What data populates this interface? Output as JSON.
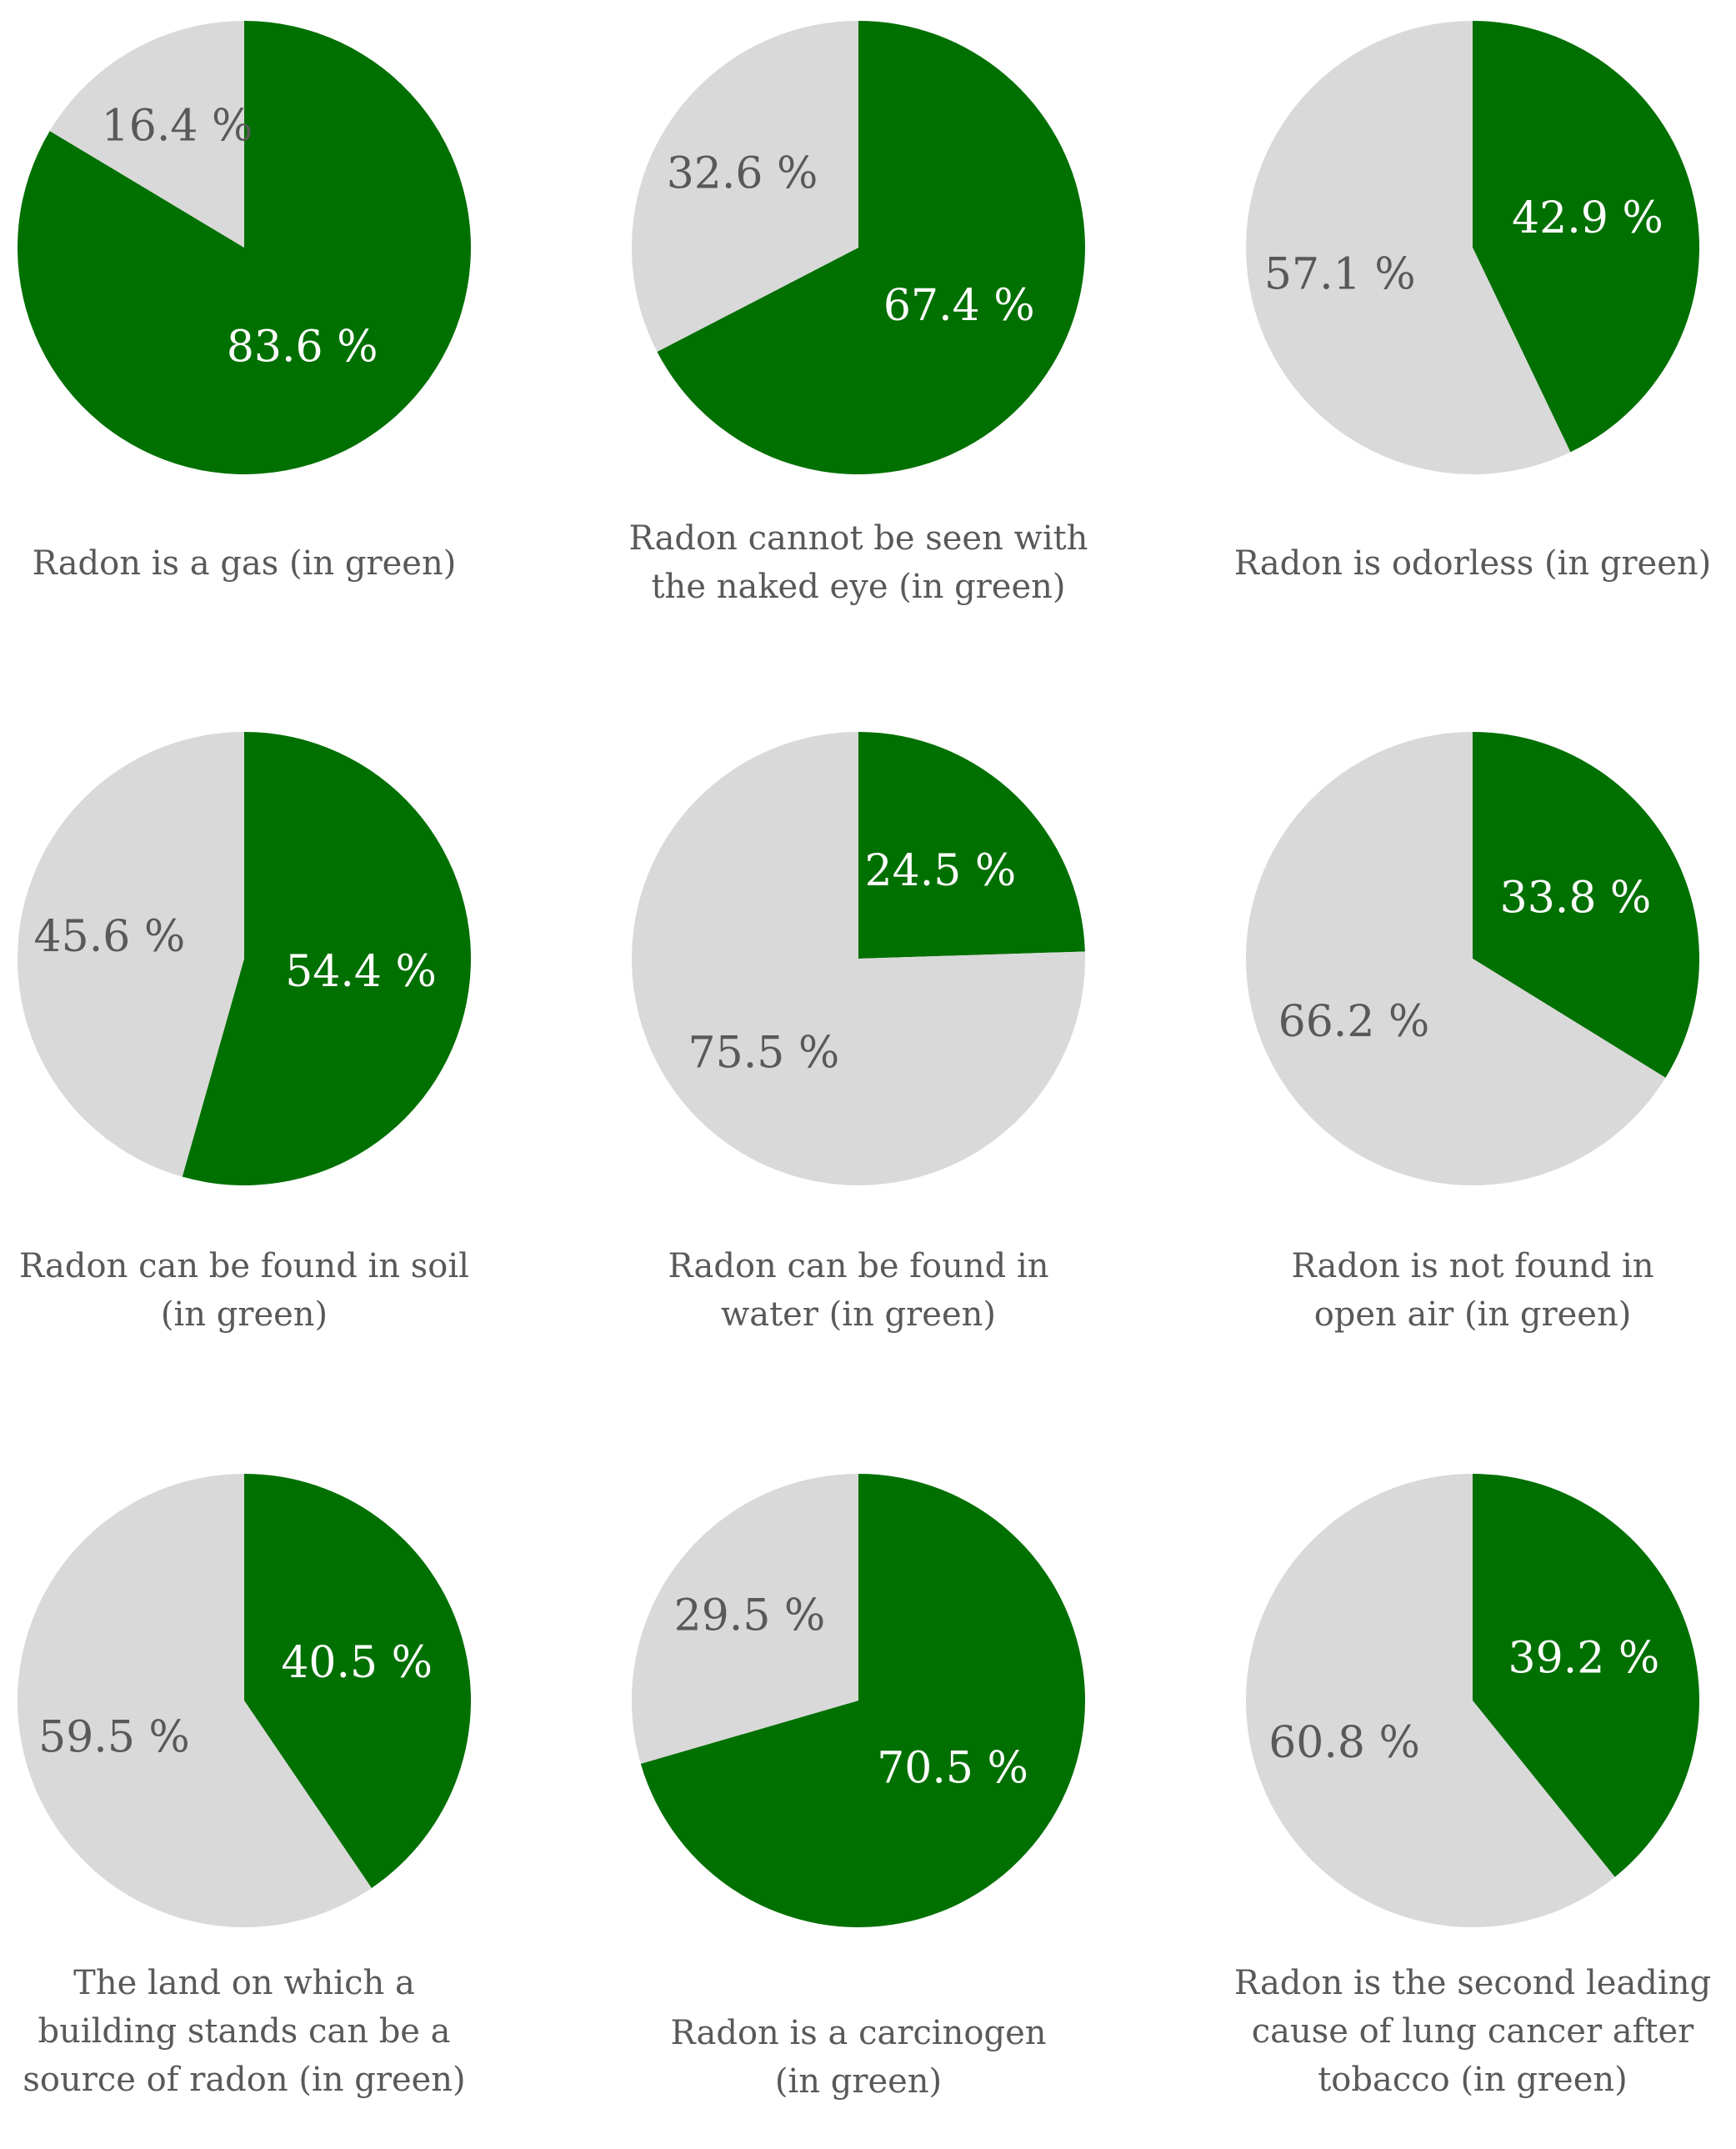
{
  "colors": {
    "green": "#007000",
    "gray": "#d9d9d9",
    "label_on_green": "#ffffff",
    "label_on_gray": "#595959",
    "caption": "#595959"
  },
  "chart_data": [
    {
      "type": "pie",
      "slices": [
        {
          "name": "green",
          "value": 83.6,
          "label": "83.6 %"
        },
        {
          "name": "gray",
          "value": 16.4,
          "label": "16.4 %"
        }
      ],
      "caption_lines": [
        "Radon is a gas (in green)"
      ]
    },
    {
      "type": "pie",
      "slices": [
        {
          "name": "green",
          "value": 67.4,
          "label": "67.4 %"
        },
        {
          "name": "gray",
          "value": 32.6,
          "label": "32.6 %"
        }
      ],
      "caption_lines": [
        "Radon cannot be seen with",
        "the naked eye (in green)"
      ]
    },
    {
      "type": "pie",
      "slices": [
        {
          "name": "green",
          "value": 42.9,
          "label": "42.9 %"
        },
        {
          "name": "gray",
          "value": 57.1,
          "label": "57.1 %"
        }
      ],
      "caption_lines": [
        "Radon is odorless (in green)"
      ]
    },
    {
      "type": "pie",
      "slices": [
        {
          "name": "green",
          "value": 54.4,
          "label": "54.4 %"
        },
        {
          "name": "gray",
          "value": 45.6,
          "label": "45.6 %"
        }
      ],
      "caption_lines": [
        "Radon can be found in soil",
        "(in green)"
      ]
    },
    {
      "type": "pie",
      "slices": [
        {
          "name": "green",
          "value": 24.5,
          "label": "24.5 %"
        },
        {
          "name": "gray",
          "value": 75.5,
          "label": "75.5 %"
        }
      ],
      "caption_lines": [
        "Radon can be found in",
        "water (in green)"
      ]
    },
    {
      "type": "pie",
      "slices": [
        {
          "name": "green",
          "value": 33.8,
          "label": "33.8 %"
        },
        {
          "name": "gray",
          "value": 66.2,
          "label": "66.2 %"
        }
      ],
      "caption_lines": [
        "Radon is not found in",
        "open air (in green)"
      ]
    },
    {
      "type": "pie",
      "slices": [
        {
          "name": "green",
          "value": 40.5,
          "label": "40.5 %"
        },
        {
          "name": "gray",
          "value": 59.5,
          "label": "59.5 %"
        }
      ],
      "caption_lines": [
        "The land on which a",
        "building stands can be a",
        "source of radon (in green)"
      ]
    },
    {
      "type": "pie",
      "slices": [
        {
          "name": "green",
          "value": 70.5,
          "label": "70.5 %"
        },
        {
          "name": "gray",
          "value": 29.5,
          "label": "29.5 %"
        }
      ],
      "caption_lines": [
        "Radon is a carcinogen",
        "(in green)"
      ]
    },
    {
      "type": "pie",
      "slices": [
        {
          "name": "green",
          "value": 39.2,
          "label": "39.2 %"
        },
        {
          "name": "gray",
          "value": 60.8,
          "label": "60.8 %"
        }
      ],
      "caption_lines": [
        "Radon is the second leading",
        "cause of lung cancer after",
        "tobacco (in green)"
      ]
    }
  ]
}
